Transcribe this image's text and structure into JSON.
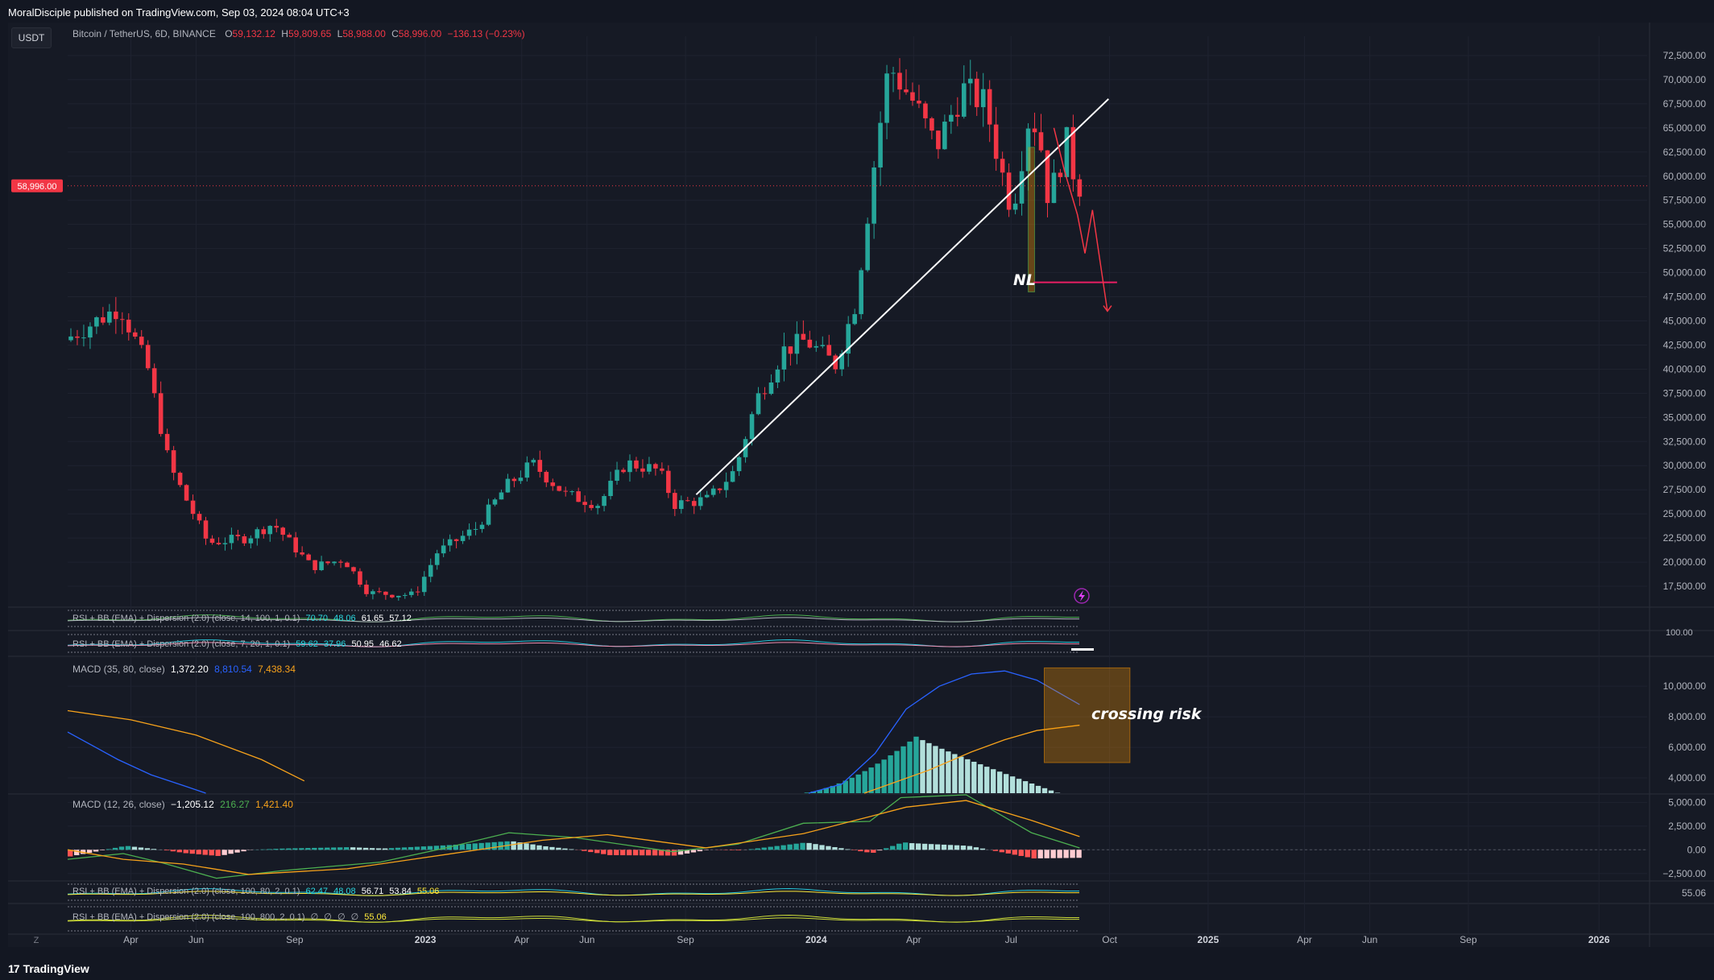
{
  "header": {
    "publisher_line": "MoralDisciple published on TradingView.com, Sep 03, 2024 08:04 UTC+3"
  },
  "symbol_badge": "USDT",
  "main_legend": {
    "title": "Bitcoin / TetherUS, 6D, BINANCE",
    "o_label": "O",
    "o_value": "59,132.12",
    "h_label": "H",
    "h_value": "59,809.65",
    "l_label": "L",
    "l_value": "58,988.00",
    "c_label": "C",
    "c_value": "58,996.00",
    "change": "−136.13 (−0.23%)"
  },
  "indicators": {
    "rsi1": {
      "label": "RSI + BB (EMA) + Dispersion (2.0) (close, 14, 100, 1, 0.1)",
      "v1": "70.70",
      "v2": "48.06",
      "v3": "61.65",
      "v4": "57.12"
    },
    "rsi2": {
      "label": "RSI + BB (EMA) + Dispersion (2.0) (close, 7, 20, 1, 0.1)",
      "v1": "59.62",
      "v2": "37.96",
      "v3": "50.95",
      "v4": "46.62",
      "axis_label": "100.00"
    },
    "macd1": {
      "label": "MACD (35, 80, close)",
      "v1": "1,372.20",
      "v2": "8,810.54",
      "v3": "7,438.34"
    },
    "macd2": {
      "label": "MACD (12, 26, close)",
      "v1": "−1,205.12",
      "v2": "216.27",
      "v3": "1,421.40"
    },
    "rsi3": {
      "label": "RSI + BB (EMA) + Dispersion (2.0) (close, 100, 80, 2, 0.1)",
      "v1": "62.47",
      "v2": "48.08",
      "v3": "56.71",
      "v4": "53.84",
      "v5": "55.06"
    },
    "rsi4": {
      "label": "RSI + BB (EMA) + Dispersion (2.0) (close, 100, 800, 2, 0.1)",
      "v1": "∅",
      "v2": "∅",
      "v3": "∅",
      "v4": "∅",
      "v5": "55.06"
    }
  },
  "annotations": {
    "neckline": "NL",
    "macd_note": "crossing risk"
  },
  "colors": {
    "up": "#26a69a",
    "down": "#f23645",
    "macd_line": "#2962ff",
    "signal_line": "#f7a21b",
    "hist_up_strong": "#26a69a",
    "hist_up_weak": "#b2dfdb",
    "hist_down_strong": "#ff5252",
    "hist_down_weak": "#ffcdd2"
  },
  "footer": {
    "brand": "TradingView",
    "brand_mark": "17",
    "reset_icon": "Z"
  },
  "chart_data": [
    {
      "type": "candlestick",
      "title": "Bitcoin / TetherUS, 6D, BINANCE",
      "y_ticks": [
        "72,500.00",
        "70,000.00",
        "67,500.00",
        "65,000.00",
        "62,500.00",
        "60,000.00",
        "57,500.00",
        "55,000.00",
        "52,500.00",
        "50,000.00",
        "47,500.00",
        "45,000.00",
        "42,500.00",
        "40,000.00",
        "37,500.00",
        "35,000.00",
        "32,500.00",
        "30,000.00",
        "27,500.00",
        "25,000.00",
        "22,500.00",
        "20,000.00",
        "17,500.00"
      ],
      "ylim": [
        15500,
        74500
      ],
      "last_price": 58996,
      "last_price_label": "58,996.00",
      "x_ticks": [
        "Apr",
        "Jun",
        "Sep",
        "2023",
        "Apr",
        "Jun",
        "Sep",
        "2024",
        "Apr",
        "Jul",
        "Oct",
        "2025",
        "Apr",
        "Jun",
        "Sep",
        "2026"
      ],
      "x_tick_bold": [
        false,
        false,
        false,
        true,
        false,
        false,
        false,
        true,
        false,
        false,
        false,
        true,
        false,
        false,
        false,
        true
      ],
      "x_tick_dates": [
        "2022-04-01",
        "2022-06-01",
        "2022-09-01",
        "2023-01-01",
        "2023-04-01",
        "2023-06-01",
        "2023-09-01",
        "2024-01-01",
        "2024-04-01",
        "2024-07-01",
        "2024-10-01",
        "2025-01-01",
        "2025-04-01",
        "2025-06-01",
        "2025-09-01",
        "2026-01-01"
      ],
      "anchor_points": [
        [
          "2022-02-01",
          43000
        ],
        [
          "2022-03-25",
          46500
        ],
        [
          "2022-04-20",
          40000
        ],
        [
          "2022-05-10",
          30000
        ],
        [
          "2022-06-15",
          22000
        ],
        [
          "2022-07-20",
          22500
        ],
        [
          "2022-08-15",
          24000
        ],
        [
          "2022-09-20",
          19500
        ],
        [
          "2022-10-20",
          20300
        ],
        [
          "2022-11-12",
          16800
        ],
        [
          "2022-12-25",
          16600
        ],
        [
          "2023-01-15",
          21000
        ],
        [
          "2023-02-20",
          23500
        ],
        [
          "2023-03-20",
          27800
        ],
        [
          "2023-04-14",
          30200
        ],
        [
          "2023-05-15",
          27000
        ],
        [
          "2023-06-15",
          26000
        ],
        [
          "2023-07-10",
          30300
        ],
        [
          "2023-08-10",
          29500
        ],
        [
          "2023-08-25",
          26000
        ],
        [
          "2023-09-25",
          26500
        ],
        [
          "2023-10-20",
          29500
        ],
        [
          "2023-11-10",
          37000
        ],
        [
          "2023-12-05",
          42000
        ],
        [
          "2023-12-25",
          43000
        ],
        [
          "2024-01-22",
          40500
        ],
        [
          "2024-02-10",
          47000
        ],
        [
          "2024-02-28",
          62000
        ],
        [
          "2024-03-12",
          71500
        ],
        [
          "2024-04-05",
          67500
        ],
        [
          "2024-04-25",
          63000
        ],
        [
          "2024-05-20",
          69000
        ],
        [
          "2024-06-10",
          67500
        ],
        [
          "2024-06-25",
          60500
        ],
        [
          "2024-07-05",
          56500
        ],
        [
          "2024-07-22",
          67000
        ],
        [
          "2024-08-01",
          63000
        ],
        [
          "2024-08-08",
          57500
        ],
        [
          "2024-08-25",
          63500
        ],
        [
          "2024-09-03",
          59000
        ]
      ],
      "trendline": [
        [
          "2023-09-11",
          27000
        ],
        [
          "2024-09-30",
          68000
        ]
      ],
      "neckline": [
        [
          "2024-07-22",
          49000
        ],
        [
          "2024-10-08",
          49000
        ]
      ],
      "neckline_label": "NL",
      "projection": [
        [
          "2024-08-10",
          65000
        ],
        [
          "2024-08-20",
          60500
        ],
        [
          "2024-09-01",
          56000
        ],
        [
          "2024-09-08",
          52000
        ],
        [
          "2024-09-15",
          56500
        ],
        [
          "2024-09-25",
          49000
        ],
        [
          "2024-09-29",
          46000
        ]
      ],
      "highlight_box": [
        [
          "2024-07-17",
          63000
        ],
        [
          "2024-07-23",
          48000
        ]
      ]
    },
    {
      "type": "line",
      "title": "MACD (35, 80, close)",
      "y_ticks": [
        "10,000.00",
        "8,000.00",
        "6,000.00",
        "4,000.00"
      ],
      "ylim": [
        3000,
        11800
      ],
      "series": [
        {
          "name": "MACD",
          "points": [
            [
              "2022-02-01",
              7000
            ],
            [
              "2022-03-20",
              5200
            ],
            [
              "2022-04-20",
              4200
            ],
            [
              "2022-05-20",
              3500
            ],
            [
              "2022-06-10",
              3000
            ]
          ]
        },
        {
          "name": "Signal",
          "points": [
            [
              "2022-02-01",
              8400
            ],
            [
              "2022-04-01",
              7800
            ],
            [
              "2022-06-01",
              6800
            ],
            [
              "2022-08-01",
              5200
            ],
            [
              "2022-09-10",
              3800
            ]
          ]
        }
      ],
      "macd_tail": [
        [
          "2023-12-25",
          3000
        ],
        [
          "2024-01-25",
          3600
        ],
        [
          "2024-02-25",
          5600
        ],
        [
          "2024-03-25",
          8500
        ],
        [
          "2024-04-25",
          10000
        ],
        [
          "2024-05-25",
          10800
        ],
        [
          "2024-06-25",
          11000
        ],
        [
          "2024-07-25",
          10400
        ],
        [
          "2024-09-03",
          8800
        ]
      ],
      "signal_tail": [
        [
          "2024-02-15",
          3000
        ],
        [
          "2024-04-15",
          4500
        ],
        [
          "2024-05-25",
          5700
        ],
        [
          "2024-06-25",
          6500
        ],
        [
          "2024-07-25",
          7100
        ],
        [
          "2024-09-03",
          7450
        ]
      ],
      "histogram_range": [
        "2023-12-15",
        "2024-08-12"
      ],
      "histogram_peak": [
        "2024-04-01",
        6700
      ],
      "note_box": [
        [
          "2024-08-01",
          11200
        ],
        [
          "2024-10-20",
          5000
        ]
      ],
      "note": "crossing risk"
    },
    {
      "type": "line",
      "title": "MACD (12, 26, close)",
      "y_ticks": [
        "5,000.00",
        "2,500.00",
        "0.00",
        "−2,500.00"
      ],
      "ylim": [
        -3200,
        5800
      ],
      "series": [
        {
          "name": "MACD",
          "points": [
            [
              "2022-02-01",
              -1000
            ],
            [
              "2022-03-25",
              -400
            ],
            [
              "2022-05-01",
              -1400
            ],
            [
              "2022-06-20",
              -3000
            ],
            [
              "2022-08-20",
              -2200
            ],
            [
              "2022-11-20",
              -1300
            ],
            [
              "2023-01-20",
              200
            ],
            [
              "2023-03-20",
              1800
            ],
            [
              "2023-05-20",
              1300
            ],
            [
              "2023-08-20",
              -200
            ],
            [
              "2023-10-20",
              600
            ],
            [
              "2023-12-20",
              2800
            ],
            [
              "2024-02-20",
              3000
            ],
            [
              "2024-03-20",
              5500
            ],
            [
              "2024-05-20",
              5800
            ],
            [
              "2024-07-20",
              1800
            ],
            [
              "2024-09-03",
              200
            ]
          ]
        },
        {
          "name": "Signal",
          "points": [
            [
              "2022-02-01",
              0
            ],
            [
              "2022-03-25",
              -1000
            ],
            [
              "2022-05-20",
              -1500
            ],
            [
              "2022-07-20",
              -2600
            ],
            [
              "2022-10-20",
              -2000
            ],
            [
              "2023-01-20",
              -500
            ],
            [
              "2023-04-20",
              1000
            ],
            [
              "2023-06-20",
              1600
            ],
            [
              "2023-09-20",
              200
            ],
            [
              "2023-12-20",
              1700
            ],
            [
              "2024-02-20",
              3500
            ],
            [
              "2024-03-25",
              4500
            ],
            [
              "2024-05-20",
              5200
            ],
            [
              "2024-07-20",
              3100
            ],
            [
              "2024-09-03",
              1400
            ]
          ]
        }
      ]
    }
  ]
}
